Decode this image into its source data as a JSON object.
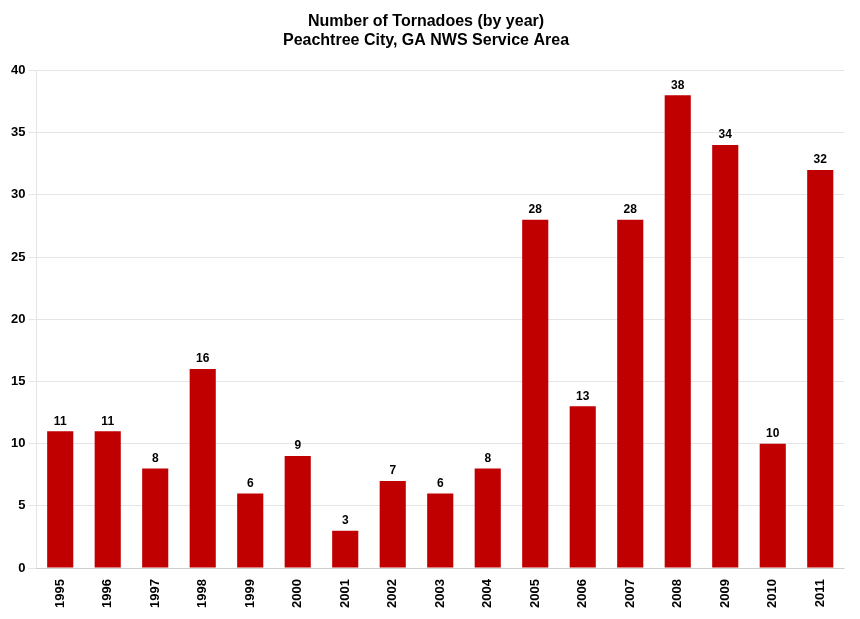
{
  "chart_data": {
    "type": "bar",
    "title": "Number of Tornadoes (by year)",
    "subtitle": "Peachtree City, GA NWS Service Area",
    "categories": [
      "1995",
      "1996",
      "1997",
      "1998",
      "1999",
      "2000",
      "2001",
      "2002",
      "2003",
      "2004",
      "2005",
      "2006",
      "2007",
      "2008",
      "2009",
      "2010",
      "2011"
    ],
    "values": [
      11,
      11,
      8,
      16,
      6,
      9,
      3,
      7,
      6,
      8,
      28,
      13,
      28,
      38,
      34,
      10,
      32
    ],
    "color": "#C00000",
    "ylim": [
      0,
      40
    ],
    "yticks": [
      0,
      5,
      10,
      15,
      20,
      25,
      30,
      35,
      40
    ],
    "grid": true,
    "data_labels": true
  }
}
